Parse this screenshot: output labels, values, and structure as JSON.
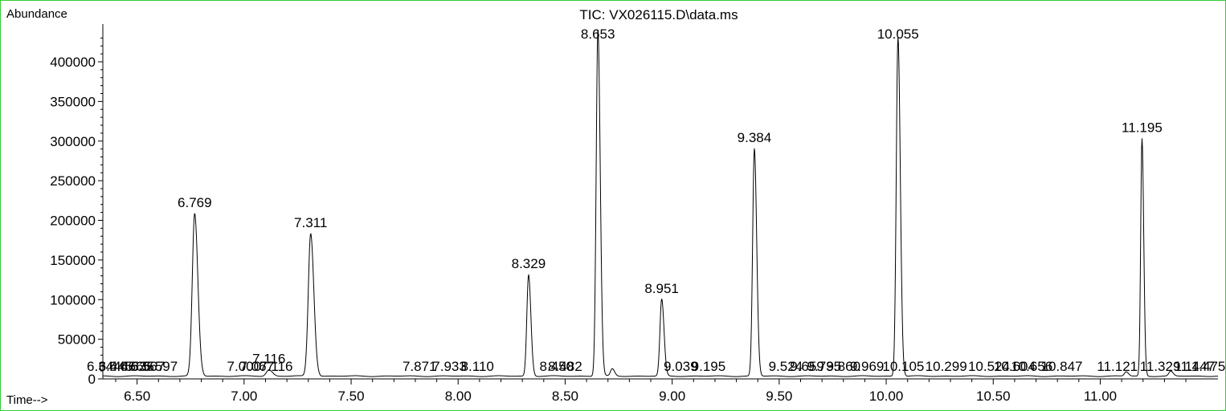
{
  "chart_data": {
    "type": "line",
    "title": "TIC: VX026115.D\\data.ms",
    "ylabel": "Abundance",
    "xlabel": "Time-->",
    "xlim": [
      6.34,
      11.55
    ],
    "ylim": [
      0,
      440000
    ],
    "grid": false,
    "legend": "none",
    "x_ticks": [
      6.5,
      7.0,
      7.5,
      8.0,
      8.5,
      9.0,
      9.5,
      10.0,
      10.5,
      11.0
    ],
    "x_tick_labels": [
      "6.50",
      "7.00",
      "7.50",
      "8.00",
      "8.50",
      "9.00",
      "9.50",
      "10.00",
      "10.50",
      "11.00"
    ],
    "y_ticks": [
      0,
      50000,
      100000,
      150000,
      200000,
      250000,
      300000,
      350000,
      400000
    ],
    "y_tick_labels": [
      "0",
      "50000",
      "100000",
      "150000",
      "200000",
      "250000",
      "300000",
      "350000",
      "400000"
    ],
    "baseline": 3500,
    "peaks": [
      {
        "time": 6.769,
        "label": "6.769",
        "height": 205000,
        "width": 0.011
      },
      {
        "time": 7.116,
        "label": "7.116",
        "height": 8000,
        "width": 0.012
      },
      {
        "time": 7.311,
        "label": "7.311",
        "height": 180000,
        "width": 0.011
      },
      {
        "time": 8.329,
        "label": "8.329",
        "height": 128000,
        "width": 0.008
      },
      {
        "time": 8.653,
        "label": "8.653",
        "height": 438000,
        "width": 0.008
      },
      {
        "time": 8.72,
        "label": "",
        "height": 9000,
        "width": 0.008
      },
      {
        "time": 8.951,
        "label": "8.951",
        "height": 97000,
        "width": 0.008
      },
      {
        "time": 9.384,
        "label": "9.384",
        "height": 287000,
        "width": 0.008
      },
      {
        "time": 10.055,
        "label": "10.055",
        "height": 428000,
        "width": 0.008
      },
      {
        "time": 11.121,
        "label": "",
        "height": 5500,
        "width": 0.008
      },
      {
        "time": 11.195,
        "label": "11.195",
        "height": 300000,
        "width": 0.006
      },
      {
        "time": 11.329,
        "label": "",
        "height": 6000,
        "width": 0.008
      }
    ],
    "minor_labels": [
      {
        "text": "6.344",
        "time": 6.345
      },
      {
        "text": "6.445",
        "time": 6.4
      },
      {
        "text": "6.466",
        "time": 6.45
      },
      {
        "text": "6.535",
        "time": 6.5
      },
      {
        "text": "6.567",
        "time": 6.55
      },
      {
        "text": "6.597",
        "time": 6.61
      },
      {
        "text": "7.000",
        "time": 7.0
      },
      {
        "text": "7.067",
        "time": 7.06
      },
      {
        "text": "7.116",
        "time": 7.15
      },
      {
        "text": "7.871",
        "time": 7.82
      },
      {
        "text": "7.933",
        "time": 7.96
      },
      {
        "text": "8.110",
        "time": 8.09
      },
      {
        "text": "8.450",
        "time": 8.46
      },
      {
        "text": "8.482",
        "time": 8.5
      },
      {
        "text": "9.039",
        "time": 9.04
      },
      {
        "text": "9.195",
        "time": 9.17
      },
      {
        "text": "9.524",
        "time": 9.53
      },
      {
        "text": "9.659",
        "time": 9.63
      },
      {
        "text": "9.735",
        "time": 9.71
      },
      {
        "text": "9.860",
        "time": 9.8
      },
      {
        "text": "9.969",
        "time": 9.91
      },
      {
        "text": "10.105",
        "time": 10.08
      },
      {
        "text": "10.299",
        "time": 10.28
      },
      {
        "text": "10.524",
        "time": 10.48
      },
      {
        "text": "10.604",
        "time": 10.6
      },
      {
        "text": "10.656",
        "time": 10.68
      },
      {
        "text": "10.847",
        "time": 10.82
      },
      {
        "text": "11.121",
        "time": 11.08
      },
      {
        "text": "11.329",
        "time": 11.28
      },
      {
        "text": "11.447",
        "time": 11.44
      },
      {
        "text": "11.475",
        "time": 11.49
      }
    ],
    "colors": {
      "frame": "#33cc33",
      "line": "#000000"
    }
  }
}
